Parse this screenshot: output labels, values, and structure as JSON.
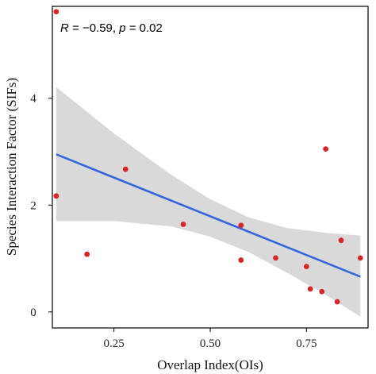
{
  "chart_data": {
    "type": "scatter",
    "xlabel": "Overlap Index(OIs)",
    "ylabel": "Species Interaction Factor (SIFs)",
    "annotation": {
      "r_symbol": "R",
      "r_text": " = −0.59, ",
      "p_symbol": "p",
      "p_text": " = 0.02"
    },
    "xlim": [
      0.09,
      0.91
    ],
    "ylim": [
      -0.3,
      5.72
    ],
    "x_ticks": [
      0.25,
      0.5,
      0.75
    ],
    "x_tick_labels": [
      "0.25",
      "0.50",
      "0.75"
    ],
    "y_ticks": [
      0,
      2,
      4
    ],
    "y_tick_labels": [
      "0",
      "2",
      "4"
    ],
    "grid": false,
    "points": [
      {
        "x": 0.1,
        "y": 5.62
      },
      {
        "x": 0.1,
        "y": 2.17
      },
      {
        "x": 0.18,
        "y": 1.08
      },
      {
        "x": 0.28,
        "y": 2.67
      },
      {
        "x": 0.43,
        "y": 1.64
      },
      {
        "x": 0.58,
        "y": 1.62
      },
      {
        "x": 0.58,
        "y": 0.97
      },
      {
        "x": 0.67,
        "y": 1.01
      },
      {
        "x": 0.75,
        "y": 0.85
      },
      {
        "x": 0.76,
        "y": 0.43
      },
      {
        "x": 0.79,
        "y": 0.38
      },
      {
        "x": 0.8,
        "y": 3.05
      },
      {
        "x": 0.83,
        "y": 0.19
      },
      {
        "x": 0.84,
        "y": 1.34
      },
      {
        "x": 0.89,
        "y": 1.01
      }
    ],
    "fit_line": {
      "x": [
        0.1,
        0.89
      ],
      "y": [
        2.95,
        0.66
      ]
    },
    "confidence_band": {
      "x": [
        0.1,
        0.25,
        0.4,
        0.5,
        0.6,
        0.7,
        0.8,
        0.89
      ],
      "upper": [
        4.21,
        3.34,
        2.56,
        2.11,
        1.77,
        1.57,
        1.48,
        1.43
      ],
      "lower": [
        1.7,
        1.7,
        1.6,
        1.41,
        1.12,
        0.73,
        0.32,
        -0.09
      ]
    },
    "colors": {
      "points": "#d62728",
      "line": "#3366dd",
      "band": "#d9d9d9",
      "axis": "#000000"
    }
  }
}
